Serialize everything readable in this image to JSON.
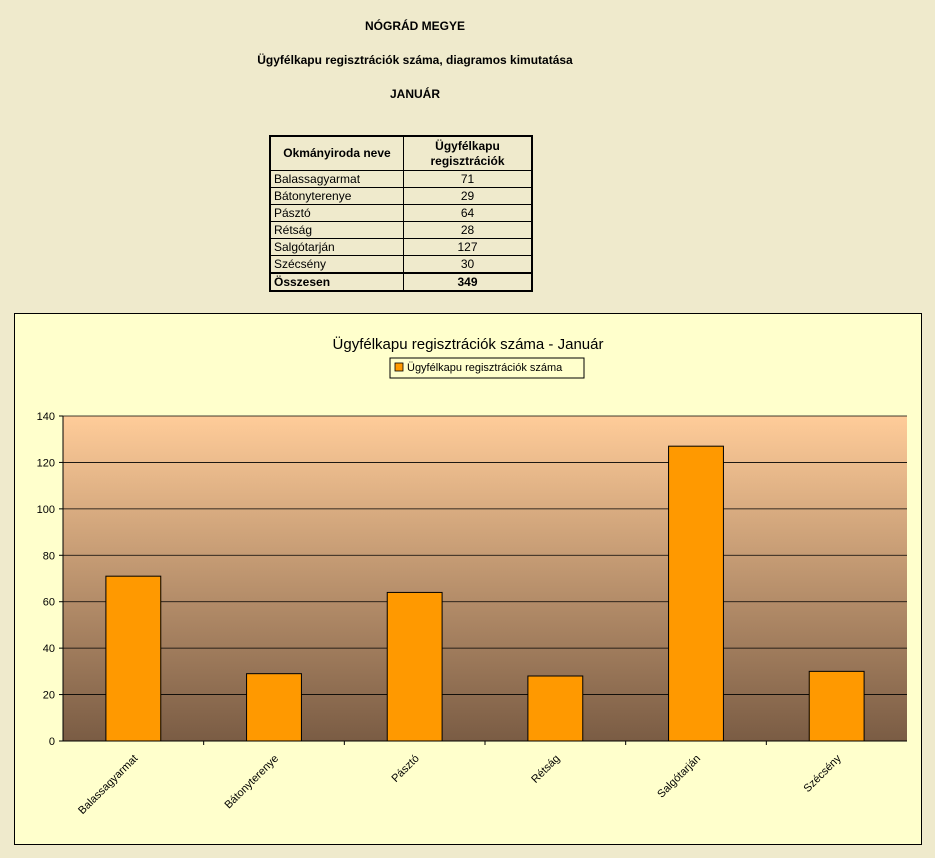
{
  "header": {
    "county": "NÓGRÁD MEGYE",
    "subtitle": "Ügyfélkapu regisztrációk száma, diagramos kimutatása",
    "month": "JANUÁR"
  },
  "table": {
    "col1": "Okmányiroda neve",
    "col2": "Ügyfélkapu regisztrációk",
    "rows": [
      {
        "name": "Balassagyarmat",
        "value": "71"
      },
      {
        "name": "Bátonyterenye",
        "value": "29"
      },
      {
        "name": "Pásztó",
        "value": "64"
      },
      {
        "name": "Rétság",
        "value": "28"
      },
      {
        "name": "Salgótarján",
        "value": "127"
      },
      {
        "name": "Szécsény",
        "value": "30"
      }
    ],
    "total_label": "Összesen",
    "total_value": "349"
  },
  "chart_data": {
    "type": "bar",
    "title": "Ügyfélkapu regisztrációk száma - Január",
    "categories": [
      "Balassagyarmat",
      "Bátonyterenye",
      "Pásztó",
      "Rétság",
      "Salgótarján",
      "Szécsény"
    ],
    "series": [
      {
        "name": "Ügyfélkapu regisztrációk száma",
        "values": [
          71,
          29,
          64,
          28,
          127,
          30
        ],
        "color": "#ff9900"
      }
    ],
    "ylim": [
      0,
      140
    ],
    "yticks": [
      0,
      20,
      40,
      60,
      80,
      100,
      120,
      140
    ],
    "grid": true,
    "legend": "top-center",
    "plot_gradient": [
      "#ffcc99",
      "#7a5c44"
    ]
  }
}
